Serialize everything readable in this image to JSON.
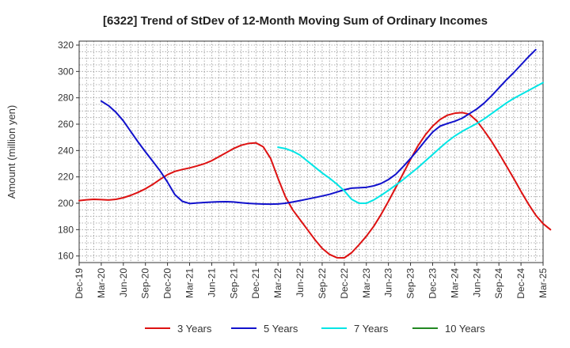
{
  "chart_data": {
    "type": "line",
    "title": "[6322]  Trend of StDev of 12-Month Moving Sum of Ordinary Incomes",
    "xlabel": "",
    "ylabel": "Amount (million yen)",
    "ylim": [
      155,
      323
    ],
    "yticks": [
      160,
      180,
      200,
      220,
      240,
      260,
      280,
      300,
      320
    ],
    "x_tick_labels": [
      "Dec-19",
      "Mar-20",
      "Jun-20",
      "Sep-20",
      "Dec-20",
      "Mar-21",
      "Jun-21",
      "Sep-21",
      "Dec-21",
      "Mar-22",
      "Jun-22",
      "Sep-22",
      "Dec-22",
      "Mar-23",
      "Jun-23",
      "Sep-23",
      "Dec-23",
      "Mar-24",
      "Jun-24",
      "Sep-24",
      "Dec-24",
      "Mar-25"
    ],
    "x_start": "Dec-19",
    "months_total": 63,
    "grid": true,
    "legend_position": "bottom",
    "series": [
      {
        "name": "3 Years",
        "color": "#dd1111",
        "start_month": 0,
        "values": [
          202,
          202.6,
          203,
          202.8,
          202.5,
          203,
          204.2,
          206,
          208.3,
          211,
          214.3,
          218.2,
          221.7,
          224.2,
          225.6,
          226.8,
          228.3,
          230,
          232.3,
          235.4,
          238.5,
          241.6,
          244,
          245.4,
          245.8,
          242.8,
          234,
          219,
          205,
          195,
          187.5,
          180,
          172.5,
          165.8,
          161.2,
          158.7,
          158.6,
          162.5,
          168.5,
          175,
          182.5,
          191.5,
          201.5,
          212,
          222.5,
          233.3,
          243.5,
          251.8,
          258.5,
          263.5,
          266.8,
          268.3,
          268.8,
          267.5,
          262.5,
          255,
          247,
          238,
          228.5,
          219,
          209,
          199.5,
          191,
          184.5,
          180
        ]
      },
      {
        "name": "5 Years",
        "color": "#1111cc",
        "start_month": 3,
        "values": [
          277.5,
          274,
          269,
          262.5,
          254.5,
          246.5,
          239,
          231.8,
          224.5,
          216,
          206.5,
          201.5,
          199.8,
          200.2,
          200.6,
          200.9,
          201.1,
          201.2,
          201,
          200.4,
          199.9,
          199.6,
          199.4,
          199.3,
          199.5,
          200,
          201,
          202,
          203.2,
          204.3,
          205.5,
          206.8,
          208.5,
          210.2,
          211.5,
          211.8,
          212.1,
          213.2,
          215,
          218,
          222,
          227.8,
          234,
          240.5,
          247.5,
          254,
          258.5,
          260.5,
          262.2,
          264.5,
          268,
          271.5,
          276,
          281.5,
          287.5,
          293.5,
          299,
          305,
          311,
          316.5
        ]
      },
      {
        "name": "7 Years",
        "color": "#00e5e5",
        "start_month": 27,
        "values": [
          242.5,
          241.5,
          239.5,
          236.5,
          232,
          227.5,
          223,
          219,
          214.5,
          209.5,
          203,
          200,
          200,
          202.5,
          206,
          209.8,
          213.8,
          218,
          222.5,
          227,
          232,
          237,
          242,
          246.8,
          251,
          254.5,
          257.5,
          260.5,
          264,
          268,
          272,
          276,
          279.5,
          282.5,
          285.5,
          288.5,
          291.5
        ]
      },
      {
        "name": "10 Years",
        "color": "#228822",
        "start_month": 0,
        "values": []
      }
    ]
  }
}
